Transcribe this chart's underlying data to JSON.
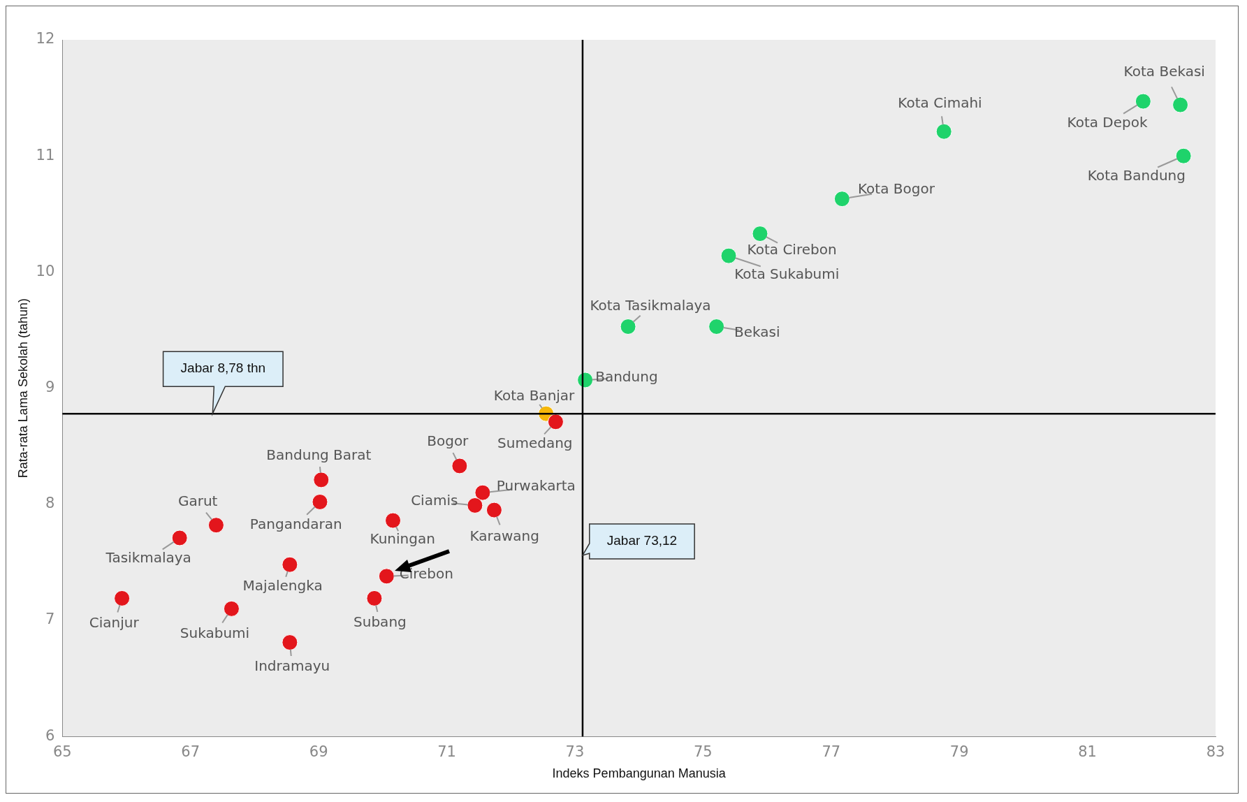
{
  "chart_data": {
    "type": "scatter",
    "xlabel": "Indeks Pembangunan Manusia",
    "ylabel": "Rata-rata Lama Sekolah (tahun)",
    "marker": "circle",
    "x": [
      82.45,
      81.87,
      82.5,
      78.76,
      77.17,
      75.89,
      75.4,
      73.83,
      75.21,
      73.16,
      72.55,
      72.7,
      71.2,
      71.56,
      71.44,
      71.74,
      69.04,
      69.02,
      67.4,
      66.83,
      70.16,
      68.55,
      70.06,
      69.87,
      65.93,
      67.64,
      68.55
    ],
    "values": [
      11.44,
      11.47,
      11.0,
      11.21,
      10.63,
      10.33,
      10.14,
      9.53,
      9.53,
      9.07,
      8.78,
      8.71,
      8.33,
      8.1,
      7.99,
      7.95,
      8.21,
      8.02,
      7.82,
      7.71,
      7.86,
      7.48,
      7.38,
      7.19,
      7.19,
      7.1,
      6.81
    ],
    "colors": [
      "#1fd36b",
      "#1fd36b",
      "#1fd36b",
      "#1fd36b",
      "#1fd36b",
      "#1fd36b",
      "#1fd36b",
      "#1fd36b",
      "#1fd36b",
      "#1fd36b",
      "#f5b70a",
      "#e3161c",
      "#e3161c",
      "#e3161c",
      "#e3161c",
      "#e3161c",
      "#e3161c",
      "#e3161c",
      "#e3161c",
      "#e3161c",
      "#e3161c",
      "#e3161c",
      "#e3161c",
      "#e3161c",
      "#e3161c",
      "#e3161c",
      "#e3161c"
    ],
    "value_labels": [
      "Kota Bekasi",
      "Kota Depok",
      "Kota Bandung",
      "Kota Cimahi",
      "Kota Bogor",
      "Kota Cirebon",
      "Kota Sukabumi",
      "Kota Tasikmalaya",
      "Bekasi",
      "Bandung",
      "Kota Banjar",
      "Sumedang",
      "Bogor",
      "Purwakarta",
      "Ciamis",
      "Karawang",
      "Bandung Barat",
      "Pangandaran",
      "Garut",
      "Tasikmalaya",
      "Kuningan",
      "Majalengka",
      "Cirebon",
      "Subang",
      "Cianjur",
      "Sukabumi",
      "Indramayu"
    ],
    "xlim": [
      65,
      83
    ],
    "xticks": [
      65,
      67,
      69,
      71,
      73,
      75,
      77,
      79,
      81,
      83
    ],
    "ylim": [
      6,
      12
    ],
    "yticks": [
      6,
      7,
      8,
      9,
      10,
      11,
      12
    ],
    "ref_lines": [
      {
        "axis": "x",
        "value": 73.12,
        "label": "Jabar 73,12",
        "color": "#000000"
      },
      {
        "axis": "y",
        "value": 8.78,
        "label": "Jabar 8,78 thn",
        "color": "#000000"
      }
    ]
  }
}
